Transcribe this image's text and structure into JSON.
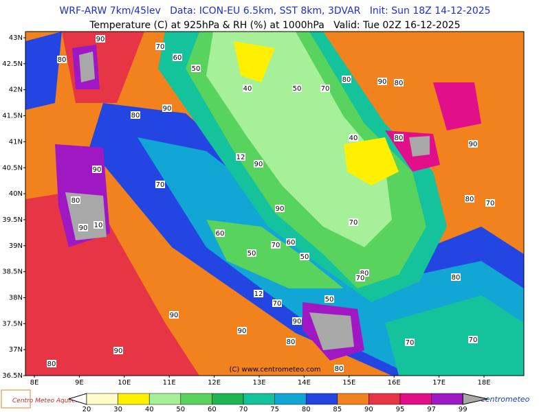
{
  "header": {
    "line1": "WRF-ARW 7km/45lev   Data: ICON-EU 6.5km, SST 8km, 3DVAR   Init: Sun 18Z 14-12-2025",
    "line2": "Temperature (C) at 925hPa & RH (%) at 1000hPa   Valid: Tue 02Z 16-12-2025"
  },
  "map": {
    "lat_labels": [
      "43N",
      "42.5N",
      "42N",
      "41.5N",
      "41N",
      "40.5N",
      "40N",
      "39.5N",
      "39N",
      "38.5N",
      "38N",
      "37.5N",
      "37N",
      "36.5N"
    ],
    "lon_labels": [
      "8E",
      "9E",
      "10E",
      "11E",
      "12E",
      "13E",
      "14E",
      "15E",
      "16E",
      "17E",
      "18E"
    ],
    "contour_labels": [
      "90",
      "80",
      "70",
      "60",
      "50",
      "40",
      "50",
      "70",
      "80",
      "90",
      "80",
      "80",
      "90",
      "40",
      "80",
      "90",
      "12",
      "90",
      "90",
      "70",
      "80",
      "90",
      "10",
      "90",
      "60",
      "70",
      "50",
      "70",
      "60",
      "50",
      "80",
      "70",
      "80",
      "12",
      "70",
      "50",
      "90",
      "90",
      "90",
      "80",
      "90",
      "80",
      "70",
      "70",
      "80",
      "80",
      "70"
    ],
    "copyright": "(C) www.centrometeo.com"
  },
  "colorbar": {
    "levels": [
      20,
      30,
      40,
      50,
      60,
      70,
      75,
      80,
      85,
      90,
      95,
      97,
      99
    ],
    "colors": [
      "#fffcc8",
      "#fff000",
      "#a6f09a",
      "#58d35e",
      "#1fb552",
      "#14c29c",
      "#12a6d4",
      "#2346e2",
      "#f2821e",
      "#e63545",
      "#e1108a",
      "#a018c4"
    ],
    "under_color": "#ffffff",
    "over_color": "#a8a8a8"
  },
  "footer": {
    "logo_left": "Centro Meteo Aquileia",
    "logo_right": "centrometeo"
  }
}
